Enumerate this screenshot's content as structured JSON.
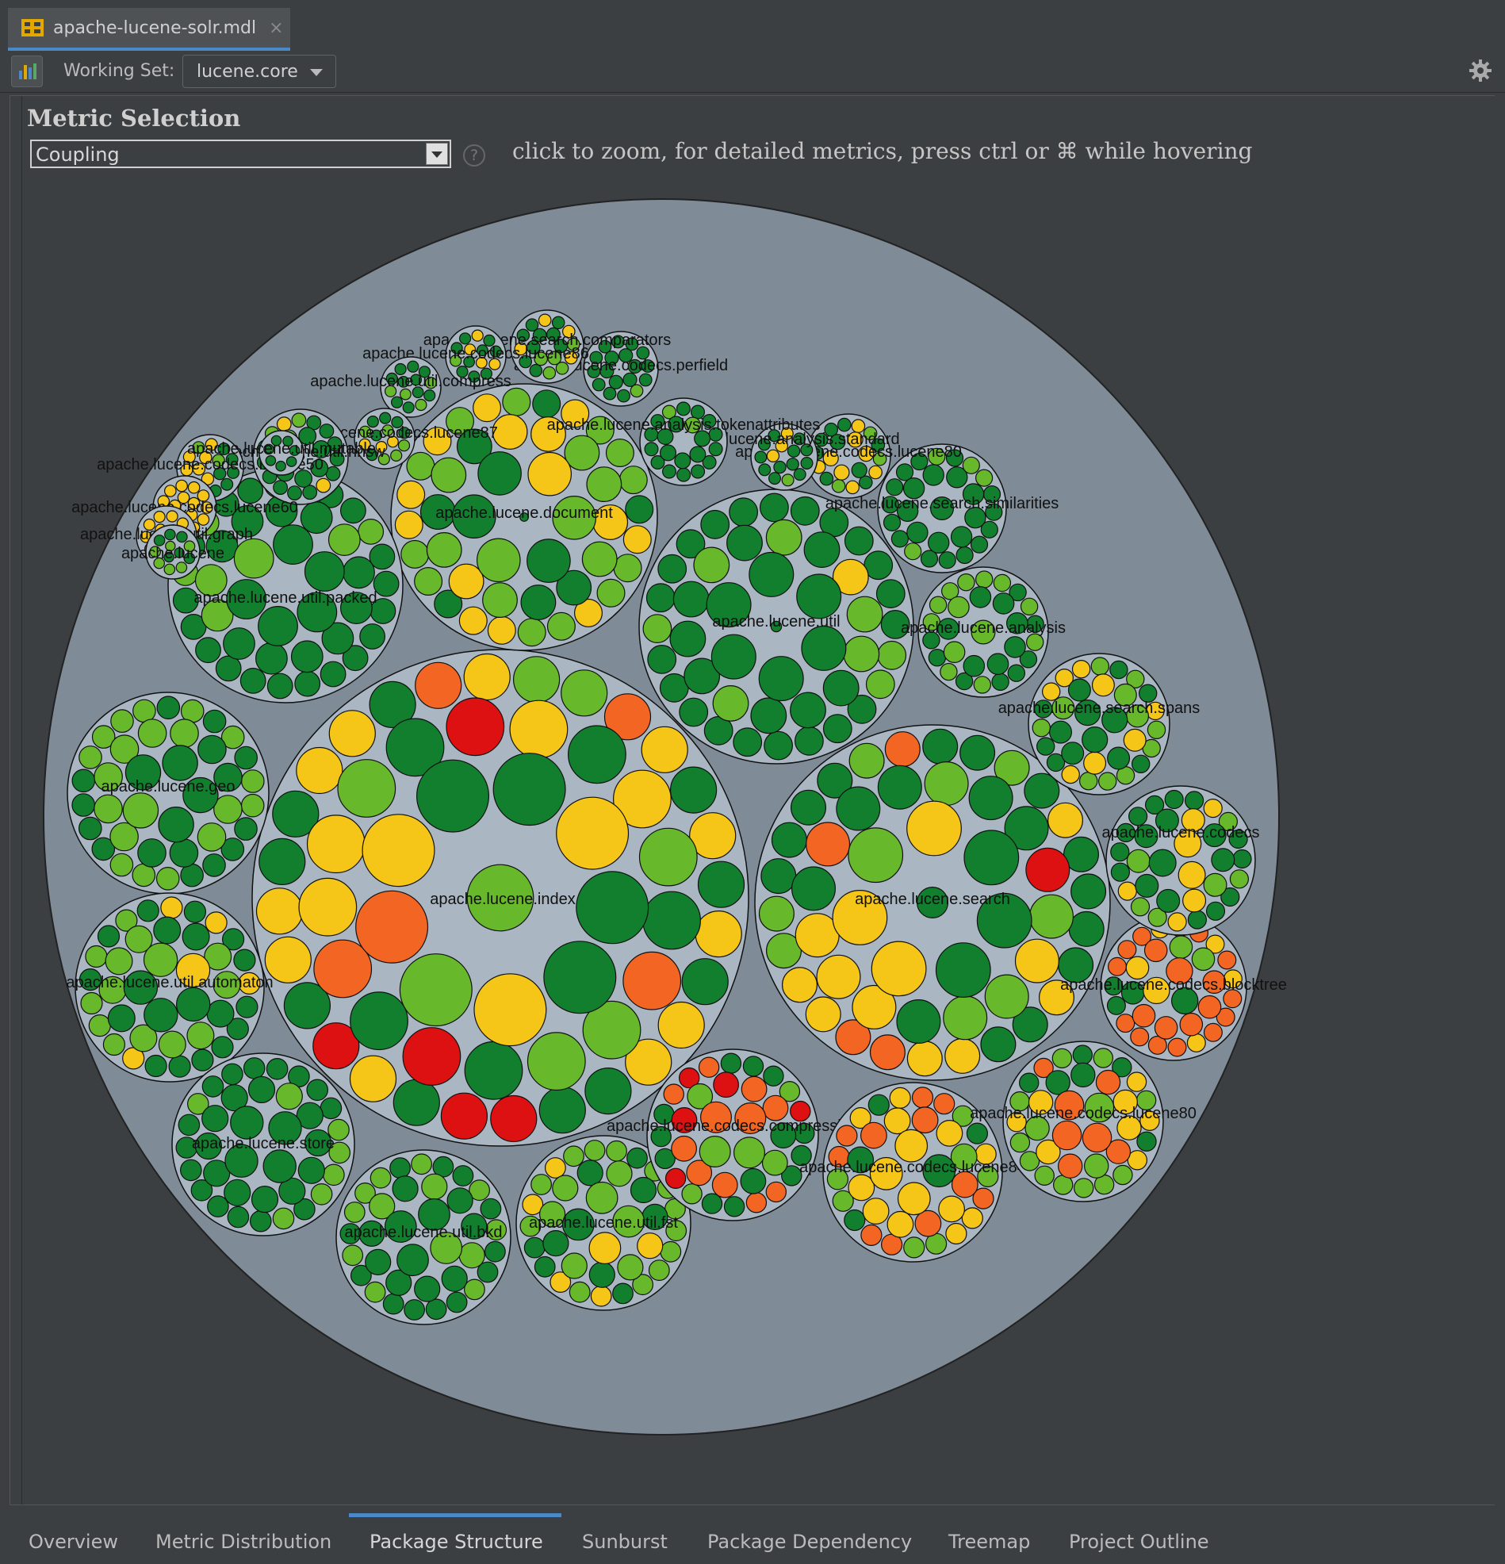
{
  "file_tab": {
    "name": "apache-lucene-solr.mdl",
    "close": "×"
  },
  "toolbar": {
    "working_set_label": "Working Set:",
    "working_set_value": "lucene.core"
  },
  "metric": {
    "title": "Metric Selection",
    "selected": "Coupling",
    "help": "?",
    "hint": "click to zoom, for detailed metrics, press ctrl or ⌘ while hovering"
  },
  "colors": {
    "outer_circle": "#7f8c98",
    "package_circle": "#aab7c3",
    "green_dark": "#117f2e",
    "green_light": "#67b82b",
    "yellow": "#f5c518",
    "orange": "#f26522",
    "red": "#dd1111"
  },
  "packages": [
    {
      "label": "apache.lucene.index"
    },
    {
      "label": "apache.lucene.search"
    },
    {
      "label": "apache.lucene.util"
    },
    {
      "label": "apache.lucene.document"
    },
    {
      "label": "apache.lucene.util.packed"
    },
    {
      "label": "apache.lucene.geo"
    },
    {
      "label": "apache.lucene.util.automaton"
    },
    {
      "label": "apache.lucene.store"
    },
    {
      "label": "apache.lucene.util.bkd"
    },
    {
      "label": "apache.lucene.util.fst"
    },
    {
      "label": "apache.lucene.codecs.compressing"
    },
    {
      "label": "apache.lucene.codecs.lucene84"
    },
    {
      "label": "apache.lucene.codecs.lucene80"
    },
    {
      "label": "apache.lucene.codecs.blocktree"
    },
    {
      "label": "apache.lucene.codecs"
    },
    {
      "label": "apache.lucene.search.spans"
    },
    {
      "label": "apache.lucene.analysis"
    },
    {
      "label": "apache.lucene.search.similarities"
    },
    {
      "label": "apache.lucene.codecs.lucene80"
    },
    {
      "label": "apache.lucene.analysis.standard"
    },
    {
      "label": "apache.lucene.analysis.tokenattributes"
    },
    {
      "label": "apache.lucene.codecs.perfield"
    },
    {
      "label": "apache.lucene.search.comparators"
    },
    {
      "label": "apache.lucene.codecs.lucene86"
    },
    {
      "label": "apache.lucene.util.compress"
    },
    {
      "label": "apache.lucene.codecs.lucene87"
    },
    {
      "label": "apache.lucene.util.hnsw"
    },
    {
      "label": "apache.lucene.codecs.lucene50"
    },
    {
      "label": "apache.lucene.codecs.lucene60"
    },
    {
      "label": "apache.lucene.util.graph"
    },
    {
      "label": "apache.lucene"
    },
    {
      "label": "apache.lucene.util.mutable"
    }
  ],
  "bottom_tabs": [
    "Overview",
    "Metric Distribution",
    "Package Structure",
    "Sunburst",
    "Package Dependency",
    "Treemap",
    "Project Outline"
  ],
  "active_tab": "Package Structure"
}
